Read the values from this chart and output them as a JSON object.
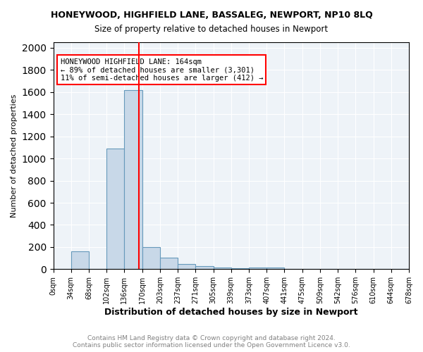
{
  "title1": "HONEYWOOD, HIGHFIELD LANE, BASSALEG, NEWPORT, NP10 8LQ",
  "title2": "Size of property relative to detached houses in Newport",
  "xlabel": "Distribution of detached houses by size in Newport",
  "ylabel": "Number of detached properties",
  "bins": [
    "0sqm",
    "34sqm",
    "68sqm",
    "102sqm",
    "136sqm",
    "170sqm",
    "203sqm",
    "237sqm",
    "271sqm",
    "305sqm",
    "339sqm",
    "373sqm",
    "407sqm",
    "441sqm",
    "475sqm",
    "509sqm",
    "542sqm",
    "576sqm",
    "610sqm",
    "644sqm",
    "678sqm"
  ],
  "values": [
    0,
    160,
    0,
    1090,
    1620,
    200,
    105,
    45,
    25,
    15,
    10,
    15,
    15,
    0,
    0,
    0,
    0,
    0,
    0,
    0,
    0
  ],
  "bar_color": "#c8d8e8",
  "bar_edge_color": "#6699bb",
  "red_line_x": 4.67,
  "ylim": [
    0,
    2050
  ],
  "yticks": [
    0,
    200,
    400,
    600,
    800,
    1000,
    1200,
    1400,
    1600,
    1800,
    2000
  ],
  "annotation_text": "HONEYWOOD HIGHFIELD LANE: 164sqm\n← 89% of detached houses are smaller (3,301)\n11% of semi-detached houses are larger (412) →",
  "footnote": "Contains HM Land Registry data © Crown copyright and database right 2024.\nContains public sector information licensed under the Open Government Licence v3.0.",
  "background_color": "#eef3f8"
}
